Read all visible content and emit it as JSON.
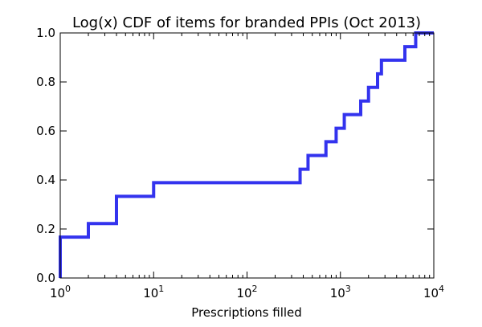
{
  "chart_data": {
    "type": "line",
    "title": "Log(x) CDF of items for branded PPIs (Oct 2013)",
    "xlabel": "Prescriptions filled",
    "ylabel": "",
    "xscale": "log",
    "xlim": [
      1,
      10000
    ],
    "ylim": [
      0.0,
      1.0
    ],
    "grid": false,
    "x_ticks": [
      {
        "base": "10",
        "exp": "0"
      },
      {
        "base": "10",
        "exp": "1"
      },
      {
        "base": "10",
        "exp": "2"
      },
      {
        "base": "10",
        "exp": "3"
      },
      {
        "base": "10",
        "exp": "4"
      }
    ],
    "y_ticks": [
      "0.0",
      "0.2",
      "0.4",
      "0.6",
      "0.8",
      "1.0"
    ],
    "series": [
      {
        "color": "#3333ee",
        "step": "post",
        "points": [
          [
            1,
            0.0
          ],
          [
            1,
            0.167
          ],
          [
            2,
            0.222
          ],
          [
            4,
            0.333
          ],
          [
            10,
            0.389
          ],
          [
            370,
            0.444
          ],
          [
            450,
            0.5
          ],
          [
            700,
            0.556
          ],
          [
            900,
            0.611
          ],
          [
            1100,
            0.667
          ],
          [
            1650,
            0.722
          ],
          [
            2000,
            0.778
          ],
          [
            2500,
            0.833
          ],
          [
            2750,
            0.889
          ],
          [
            4900,
            0.944
          ],
          [
            6400,
            1.0
          ]
        ]
      }
    ]
  }
}
